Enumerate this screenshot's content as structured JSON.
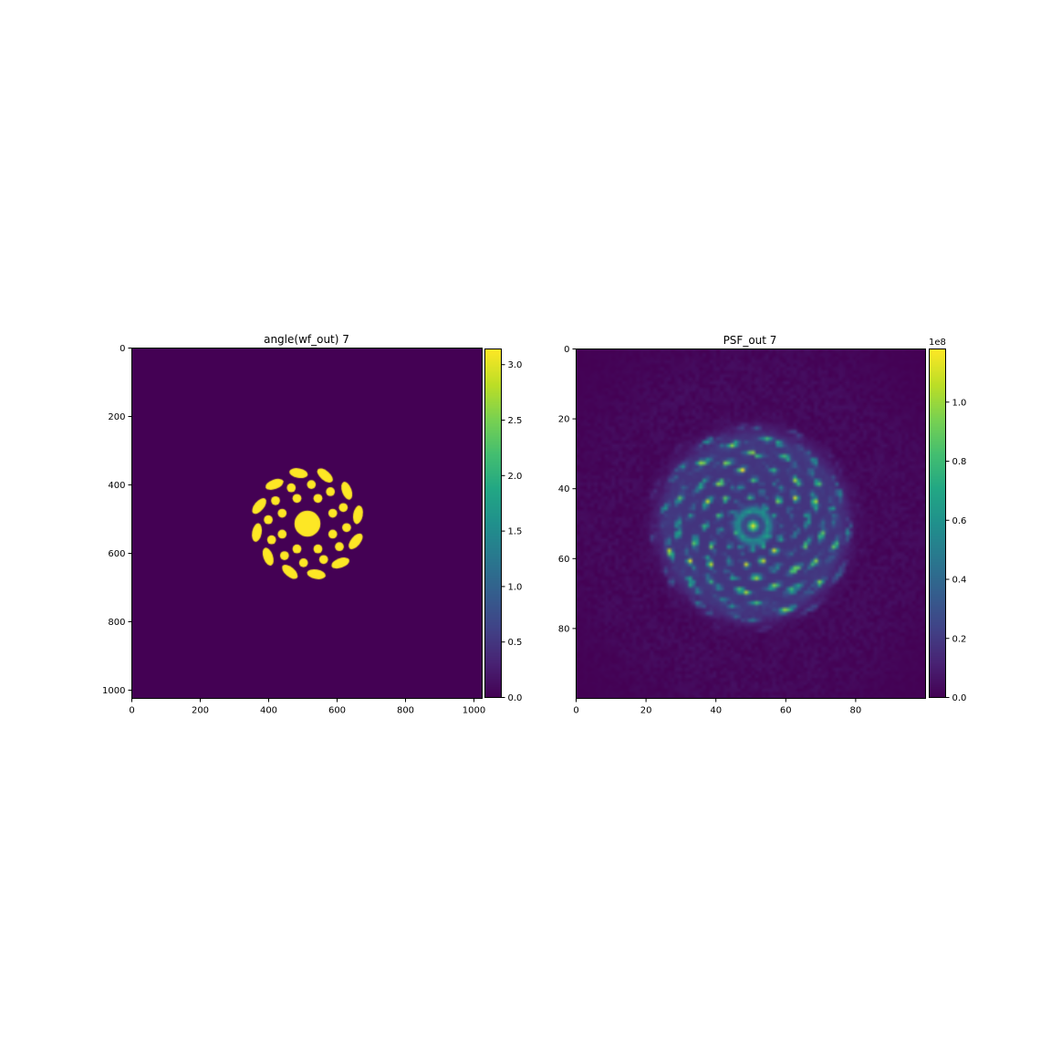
{
  "chart_data": [
    {
      "type": "heatmap",
      "title": "angle(wf_out) 7",
      "xlabel": "",
      "ylabel": "",
      "colormap": "viridis",
      "xlim": [
        0,
        1024
      ],
      "ylim": [
        1024,
        0
      ],
      "x_ticks": [
        0,
        200,
        400,
        600,
        800,
        1000
      ],
      "y_ticks": [
        0,
        200,
        400,
        600,
        800,
        1000
      ],
      "colorbar": {
        "range": [
          0,
          3.14159
        ],
        "ticks": [
          "0.0",
          "0.5",
          "1.0",
          "1.5",
          "2.0",
          "2.5",
          "3.0"
        ],
        "offset_label": ""
      },
      "values_description": "binary phase mask: 0 outside, pi on a central disk plus rings of blobs and outer segments",
      "features": {
        "center": [
          512,
          512
        ],
        "central_disk_radius": 38,
        "inner_ring": {
          "radius": 80,
          "count": 8,
          "blob_radius": 13
        },
        "middle_ring": {
          "radius": 115,
          "count": 12,
          "blob_radius": 13
        },
        "outer_ring": {
          "radius": 150,
          "count": 12,
          "segment_length": 55,
          "segment_width": 28
        }
      }
    },
    {
      "type": "heatmap",
      "title": "PSF_out 7",
      "xlabel": "",
      "ylabel": "",
      "colormap": "viridis",
      "xlim": [
        0,
        100
      ],
      "ylim": [
        100,
        0
      ],
      "x_ticks": [
        0,
        20,
        40,
        60,
        80
      ],
      "y_ticks": [
        0,
        20,
        40,
        60,
        80
      ],
      "colorbar": {
        "range": [
          0,
          118000000.0
        ],
        "ticks": [
          "0.0",
          "0.2",
          "0.4",
          "0.6",
          "0.8",
          "1.0"
        ],
        "offset_label": "1e8"
      },
      "values_description": "speckle point-spread-function intensity pattern, bright center peak surrounded by a dim ring and a speckled annulus",
      "features": {
        "center": [
          50,
          50
        ],
        "central_peak_radius": 1.2,
        "dim_ring_radius": 4.2,
        "speckle_annulus": [
          6,
          29
        ],
        "bright_arms": 12
      }
    }
  ]
}
